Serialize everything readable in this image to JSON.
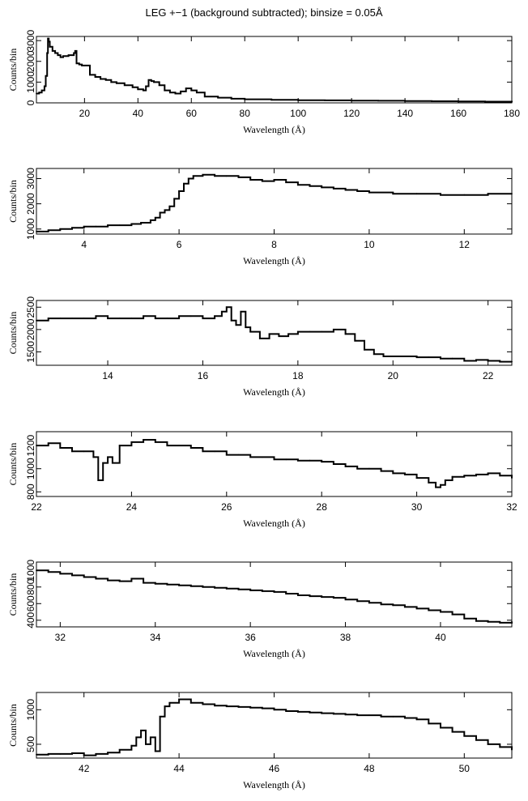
{
  "page": {
    "title": "LEG +−1 (background subtracted); binsize = 0.05Å"
  },
  "style": {
    "line_color": "#000000",
    "background": "#ffffff"
  },
  "chart_data": [
    {
      "type": "line",
      "xlabel": "Wavelength (Å)",
      "ylabel": "Counts/bin",
      "xlim": [
        2,
        180
      ],
      "ylim": [
        0,
        3200
      ],
      "xticks": [
        "20",
        "40",
        "60",
        "80",
        "100",
        "120",
        "140",
        "160",
        "180"
      ],
      "yticks": [
        "0",
        "1000",
        "2000",
        "3000"
      ],
      "series": [
        {
          "x": [
            2,
            3,
            4,
            5,
            5.5,
            6,
            6.3,
            6.6,
            7,
            8,
            9,
            10,
            11,
            12,
            13,
            14,
            15,
            16,
            16.5,
            17,
            18,
            19,
            20,
            22,
            24,
            26,
            28,
            30,
            32,
            35,
            38,
            40,
            42,
            43,
            44,
            45,
            46,
            48,
            50,
            52,
            54,
            56,
            58,
            60,
            62,
            65,
            70,
            75,
            80,
            90,
            100,
            110,
            120,
            130,
            140,
            150,
            160,
            170,
            180
          ],
          "y": [
            450,
            500,
            600,
            800,
            1300,
            2400,
            3100,
            2950,
            2700,
            2500,
            2400,
            2300,
            2200,
            2250,
            2250,
            2300,
            2300,
            2400,
            2500,
            1900,
            1850,
            1800,
            1800,
            1350,
            1250,
            1150,
            1100,
            1000,
            950,
            850,
            750,
            650,
            600,
            800,
            1100,
            1050,
            1000,
            850,
            600,
            500,
            450,
            550,
            700,
            600,
            500,
            300,
            250,
            200,
            170,
            150,
            130,
            120,
            110,
            100,
            90,
            80,
            70,
            60,
            40
          ]
        }
      ]
    },
    {
      "type": "line",
      "xlabel": "Wavelength (Å)",
      "ylabel": "Counts/bin",
      "xlim": [
        3,
        13
      ],
      "ylim": [
        800,
        3400
      ],
      "xticks": [
        "4",
        "6",
        "8",
        "10",
        "12"
      ],
      "yticks": [
        "1000",
        "2000",
        "3000"
      ],
      "series": [
        {
          "x": [
            3,
            3.25,
            3.5,
            3.75,
            4,
            4.25,
            4.5,
            4.75,
            5,
            5.2,
            5.4,
            5.5,
            5.6,
            5.7,
            5.8,
            5.9,
            6,
            6.1,
            6.2,
            6.3,
            6.5,
            6.75,
            7,
            7.25,
            7.5,
            7.75,
            8,
            8.25,
            8.5,
            8.75,
            9,
            9.25,
            9.5,
            9.75,
            10,
            10.5,
            11,
            11.5,
            12,
            12.5,
            13
          ],
          "y": [
            900,
            950,
            1000,
            1050,
            1100,
            1100,
            1150,
            1150,
            1200,
            1250,
            1350,
            1450,
            1650,
            1750,
            1900,
            2200,
            2500,
            2800,
            3000,
            3100,
            3150,
            3100,
            3100,
            3050,
            2950,
            2900,
            2950,
            2850,
            2750,
            2700,
            2650,
            2600,
            2550,
            2500,
            2450,
            2400,
            2400,
            2350,
            2350,
            2400,
            2400
          ]
        }
      ]
    },
    {
      "type": "line",
      "xlabel": "Wavelength (Å)",
      "ylabel": "Counts/bin",
      "xlim": [
        12.5,
        22.5
      ],
      "ylim": [
        1200,
        2650
      ],
      "xticks": [
        "14",
        "16",
        "18",
        "20",
        "22"
      ],
      "yticks": [
        "1500",
        "2000",
        "2500"
      ],
      "series": [
        {
          "x": [
            12.5,
            12.75,
            13,
            13.25,
            13.5,
            13.75,
            14,
            14.25,
            14.5,
            14.75,
            15,
            15.25,
            15.5,
            15.75,
            16,
            16.25,
            16.4,
            16.5,
            16.6,
            16.7,
            16.8,
            16.9,
            17,
            17.2,
            17.4,
            17.6,
            17.8,
            18,
            18.25,
            18.5,
            18.75,
            19,
            19.2,
            19.4,
            19.6,
            19.8,
            20,
            20.25,
            20.5,
            20.75,
            21,
            21.25,
            21.5,
            21.75,
            22,
            22.25,
            22.5
          ],
          "y": [
            2200,
            2250,
            2250,
            2250,
            2250,
            2300,
            2250,
            2250,
            2250,
            2300,
            2250,
            2250,
            2300,
            2300,
            2250,
            2300,
            2400,
            2500,
            2200,
            2100,
            2400,
            2050,
            1950,
            1800,
            1900,
            1850,
            1900,
            1950,
            1950,
            1950,
            2000,
            1900,
            1750,
            1550,
            1450,
            1400,
            1400,
            1400,
            1380,
            1380,
            1350,
            1350,
            1300,
            1320,
            1300,
            1280,
            1280
          ]
        }
      ]
    },
    {
      "type": "line",
      "xlabel": "Wavelength (Å)",
      "ylabel": "Counts/bin",
      "xlim": [
        22,
        32
      ],
      "ylim": [
        760,
        1320
      ],
      "xticks": [
        "22",
        "24",
        "26",
        "28",
        "30",
        "32"
      ],
      "yticks": [
        "800",
        "1000",
        "1200"
      ],
      "series": [
        {
          "x": [
            22,
            22.25,
            22.5,
            22.75,
            23,
            23.2,
            23.3,
            23.4,
            23.5,
            23.6,
            23.75,
            24,
            24.25,
            24.5,
            24.75,
            25,
            25.25,
            25.5,
            25.75,
            26,
            26.25,
            26.5,
            26.75,
            27,
            27.25,
            27.5,
            27.75,
            28,
            28.25,
            28.5,
            28.75,
            29,
            29.25,
            29.5,
            29.75,
            30,
            30.25,
            30.4,
            30.5,
            30.6,
            30.75,
            31,
            31.25,
            31.5,
            31.75,
            32
          ],
          "y": [
            1200,
            1220,
            1180,
            1150,
            1150,
            1100,
            900,
            1050,
            1100,
            1050,
            1200,
            1230,
            1250,
            1230,
            1200,
            1200,
            1180,
            1150,
            1150,
            1120,
            1120,
            1100,
            1100,
            1080,
            1080,
            1070,
            1070,
            1060,
            1040,
            1020,
            1000,
            1000,
            980,
            960,
            950,
            920,
            880,
            840,
            860,
            900,
            930,
            940,
            950,
            960,
            940,
            920
          ]
        }
      ]
    },
    {
      "type": "line",
      "xlabel": "Wavelength (Å)",
      "ylabel": "Counts/bin",
      "xlim": [
        31.5,
        41.5
      ],
      "ylim": [
        320,
        1100
      ],
      "xticks": [
        "32",
        "34",
        "36",
        "38",
        "40"
      ],
      "yticks": [
        "400",
        "600",
        "800",
        "1000"
      ],
      "series": [
        {
          "x": [
            31.5,
            31.75,
            32,
            32.25,
            32.5,
            32.75,
            33,
            33.25,
            33.5,
            33.75,
            34,
            34.25,
            34.5,
            34.75,
            35,
            35.25,
            35.5,
            35.75,
            36,
            36.25,
            36.5,
            36.75,
            37,
            37.25,
            37.5,
            37.75,
            38,
            38.25,
            38.5,
            38.75,
            39,
            39.25,
            39.5,
            39.75,
            40,
            40.25,
            40.5,
            40.75,
            41,
            41.25,
            41.5
          ],
          "y": [
            1000,
            980,
            960,
            940,
            920,
            900,
            880,
            870,
            900,
            850,
            840,
            830,
            820,
            810,
            800,
            790,
            780,
            770,
            760,
            750,
            740,
            720,
            700,
            690,
            680,
            670,
            650,
            630,
            610,
            590,
            580,
            560,
            540,
            520,
            500,
            470,
            420,
            390,
            380,
            370,
            380
          ]
        }
      ]
    },
    {
      "type": "line",
      "xlabel": "Wavelength (Å)",
      "ylabel": "Counts/bin",
      "xlim": [
        41,
        51
      ],
      "ylim": [
        300,
        1250
      ],
      "xticks": [
        "42",
        "44",
        "46",
        "48",
        "50"
      ],
      "yticks": [
        "500",
        "1000"
      ],
      "series": [
        {
          "x": [
            41,
            41.25,
            41.5,
            41.75,
            42,
            42.25,
            42.5,
            42.75,
            43,
            43.1,
            43.2,
            43.3,
            43.4,
            43.5,
            43.6,
            43.7,
            43.8,
            44,
            44.25,
            44.5,
            44.75,
            45,
            45.25,
            45.5,
            45.75,
            46,
            46.25,
            46.5,
            46.75,
            47,
            47.25,
            47.5,
            47.75,
            48,
            48.25,
            48.5,
            48.75,
            49,
            49.25,
            49.5,
            49.75,
            50,
            50.25,
            50.5,
            50.75,
            51
          ],
          "y": [
            350,
            360,
            360,
            370,
            340,
            360,
            380,
            420,
            480,
            600,
            700,
            500,
            600,
            400,
            900,
            1050,
            1100,
            1150,
            1100,
            1080,
            1060,
            1050,
            1040,
            1030,
            1020,
            1000,
            980,
            970,
            960,
            950,
            940,
            930,
            920,
            920,
            900,
            900,
            880,
            860,
            800,
            740,
            680,
            620,
            560,
            500,
            460,
            420
          ]
        }
      ]
    }
  ]
}
